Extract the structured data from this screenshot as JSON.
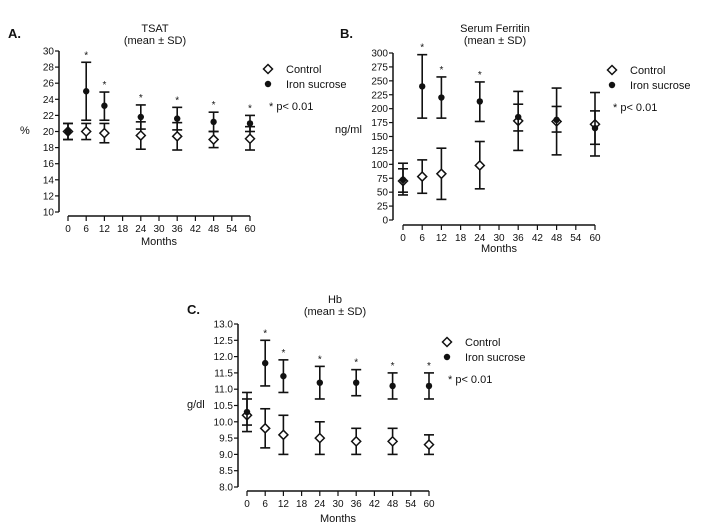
{
  "chart_data": [
    {
      "type": "scatter",
      "panel_label": "A.",
      "title": "TSAT",
      "subtitle": "(mean ± SD)",
      "xlabel": "Months",
      "ylabel": "%",
      "xlim": [
        0,
        60
      ],
      "ylim": [
        10,
        30
      ],
      "xticks": [
        0,
        6,
        12,
        18,
        24,
        30,
        36,
        42,
        48,
        54,
        60
      ],
      "yticks": [
        10,
        12,
        14,
        16,
        18,
        20,
        22,
        24,
        26,
        28,
        30
      ],
      "ytick_decimals": 0,
      "legend": [
        "Control",
        "Iron sucrose"
      ],
      "legend_note": "* p< 0.01",
      "significance_x": [
        6,
        12,
        24,
        36,
        48,
        60
      ],
      "series": [
        {
          "name": "Control",
          "marker": "open-diamond",
          "x": [
            0,
            6,
            12,
            24,
            36,
            48,
            60
          ],
          "mean": [
            20,
            20,
            19.8,
            19.5,
            19.4,
            19,
            19.1
          ],
          "sd_low": [
            19,
            19,
            18.6,
            17.8,
            17.7,
            18,
            17.7
          ],
          "sd_high": [
            21,
            21,
            21,
            21.2,
            21.1,
            20,
            20.6
          ]
        },
        {
          "name": "Iron sucrose",
          "marker": "filled-circle",
          "x": [
            0,
            6,
            12,
            24,
            36,
            48,
            60
          ],
          "mean": [
            20,
            25,
            23.2,
            21.8,
            21.6,
            21.2,
            21
          ],
          "sd_low": [
            19,
            21.4,
            21.4,
            20.3,
            20.2,
            20,
            20
          ],
          "sd_high": [
            21,
            28.6,
            24.9,
            23.3,
            23,
            22.4,
            22
          ]
        }
      ]
    },
    {
      "type": "scatter",
      "panel_label": "B.",
      "title": "Serum Ferritin",
      "subtitle": "(mean ± SD)",
      "xlabel": "Months",
      "ylabel": "ng/ml",
      "xlim": [
        0,
        60
      ],
      "ylim": [
        0,
        300
      ],
      "xticks": [
        0,
        6,
        12,
        18,
        24,
        30,
        36,
        42,
        48,
        54,
        60
      ],
      "yticks": [
        0,
        25,
        50,
        75,
        100,
        125,
        150,
        175,
        200,
        225,
        250,
        275,
        300
      ],
      "ytick_decimals": 0,
      "legend": [
        "Control",
        "Iron sucrose"
      ],
      "legend_note": "* p< 0.01",
      "significance_x": [
        6,
        12,
        24
      ],
      "series": [
        {
          "name": "Control",
          "marker": "open-diamond",
          "x": [
            0,
            6,
            12,
            24,
            36,
            48,
            60
          ],
          "mean": [
            70,
            78,
            83,
            98,
            178,
            177,
            172
          ],
          "sd_low": [
            50,
            48,
            37,
            56,
            125,
            117,
            115
          ],
          "sd_high": [
            92,
            108,
            129,
            141,
            231,
            237,
            229
          ]
        },
        {
          "name": "Iron sucrose",
          "marker": "filled-circle",
          "x": [
            0,
            6,
            12,
            24,
            36,
            48,
            60
          ],
          "mean": [
            72,
            240,
            220,
            213,
            185,
            180,
            165
          ],
          "sd_low": [
            45,
            183,
            183,
            177,
            160,
            158,
            136
          ],
          "sd_high": [
            102,
            297,
            257,
            248,
            208,
            204,
            196
          ]
        }
      ]
    },
    {
      "type": "scatter",
      "panel_label": "C.",
      "title": "Hb",
      "subtitle": "(mean ± SD)",
      "xlabel": "Months",
      "ylabel": "g/dl",
      "xlim": [
        0,
        60
      ],
      "ylim": [
        8,
        13
      ],
      "xticks": [
        0,
        6,
        12,
        18,
        24,
        30,
        36,
        42,
        48,
        54,
        60
      ],
      "yticks": [
        8,
        8.5,
        9,
        9.5,
        10,
        10.5,
        11,
        11.5,
        12,
        12.5,
        13
      ],
      "ytick_decimals": 1,
      "legend": [
        "Control",
        "Iron sucrose"
      ],
      "legend_note": "* p< 0.01",
      "significance_x": [
        6,
        12,
        24,
        36,
        48,
        60
      ],
      "series": [
        {
          "name": "Control",
          "marker": "open-diamond",
          "x": [
            0,
            6,
            12,
            24,
            36,
            48,
            60
          ],
          "mean": [
            10.2,
            9.8,
            9.6,
            9.5,
            9.4,
            9.4,
            9.3
          ],
          "sd_low": [
            9.7,
            9.2,
            9.0,
            9.0,
            9.0,
            9.0,
            9.0
          ],
          "sd_high": [
            10.9,
            10.4,
            10.2,
            10.0,
            9.8,
            9.8,
            9.6
          ]
        },
        {
          "name": "Iron sucrose",
          "marker": "filled-circle",
          "x": [
            0,
            6,
            12,
            24,
            36,
            48,
            60
          ],
          "mean": [
            10.3,
            11.8,
            11.4,
            11.2,
            11.2,
            11.1,
            11.1
          ],
          "sd_low": [
            9.9,
            11.1,
            10.9,
            10.7,
            10.8,
            10.7,
            10.7
          ],
          "sd_high": [
            10.7,
            12.5,
            11.9,
            11.7,
            11.6,
            11.5,
            11.5
          ]
        }
      ]
    }
  ]
}
